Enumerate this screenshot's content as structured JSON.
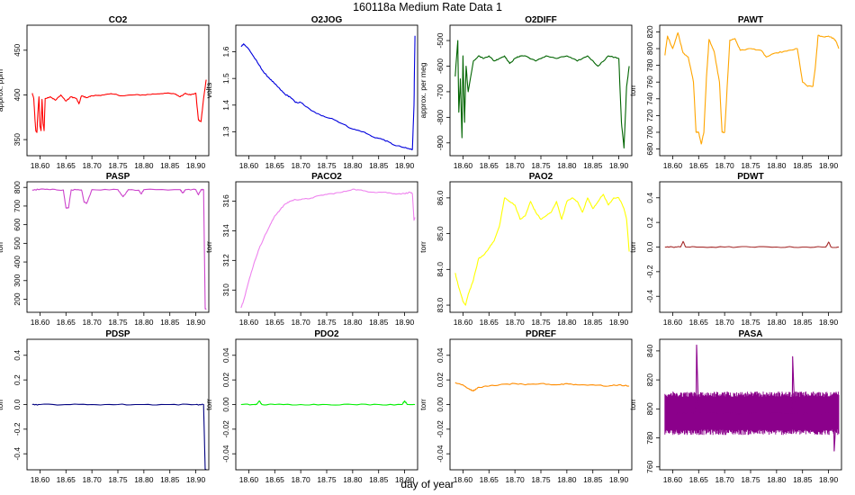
{
  "page": {
    "title": "160118a   Medium Rate Data 1",
    "xlabel": "day of year"
  },
  "chart_data": [
    {
      "type": "line",
      "title": "CO2",
      "ylabel": "approx. ppm",
      "color": "#ff0000",
      "xlim": [
        18.575,
        18.925
      ],
      "ylim": [
        332,
        478
      ],
      "xticks": [
        "18.60",
        "18.65",
        "18.70",
        "18.75",
        "18.80",
        "18.85",
        "18.90"
      ],
      "yticks": [
        "350",
        "400",
        "450"
      ],
      "x": [
        18.585,
        18.588,
        18.59,
        18.592,
        18.594,
        18.596,
        18.598,
        18.6,
        18.602,
        18.604,
        18.606,
        18.608,
        18.61,
        18.62,
        18.63,
        18.64,
        18.65,
        18.66,
        18.67,
        18.675,
        18.68,
        18.69,
        18.7,
        18.72,
        18.74,
        18.76,
        18.78,
        18.8,
        18.82,
        18.84,
        18.86,
        18.87,
        18.88,
        18.89,
        18.9,
        18.905,
        18.91,
        18.915,
        18.92
      ],
      "y": [
        402,
        396,
        376,
        360,
        358,
        380,
        398,
        365,
        360,
        395,
        368,
        360,
        396,
        398,
        394,
        400,
        393,
        398,
        396,
        390,
        399,
        397,
        399,
        400,
        401,
        399,
        400,
        400,
        401,
        402,
        401,
        398,
        402,
        400,
        402,
        372,
        370,
        396,
        417
      ]
    },
    {
      "type": "line",
      "title": "O2JOG",
      "ylabel": "volts",
      "color": "#0000dd",
      "xlim": [
        18.575,
        18.925
      ],
      "ylim": [
        1.21,
        1.7
      ],
      "xticks": [
        "18.60",
        "18.65",
        "18.70",
        "18.75",
        "18.80",
        "18.85",
        "18.90"
      ],
      "yticks": [
        "1.3",
        "1.4",
        "1.5",
        "1.6"
      ],
      "x": [
        18.585,
        18.59,
        18.6,
        18.61,
        18.62,
        18.63,
        18.64,
        18.65,
        18.66,
        18.67,
        18.68,
        18.69,
        18.7,
        18.72,
        18.74,
        18.76,
        18.78,
        18.8,
        18.82,
        18.84,
        18.86,
        18.88,
        18.9,
        18.91,
        18.915,
        18.918,
        18.92
      ],
      "y": [
        1.62,
        1.63,
        1.61,
        1.58,
        1.55,
        1.52,
        1.5,
        1.48,
        1.46,
        1.44,
        1.43,
        1.41,
        1.41,
        1.38,
        1.36,
        1.35,
        1.33,
        1.31,
        1.3,
        1.28,
        1.27,
        1.25,
        1.24,
        1.235,
        1.233,
        1.4,
        1.66
      ]
    },
    {
      "type": "line",
      "title": "O2DIFF",
      "ylabel": "approx. per meg",
      "color": "#006400",
      "xlim": [
        18.575,
        18.925
      ],
      "ylim": [
        -950,
        -440
      ],
      "xticks": [
        "18.60",
        "18.65",
        "18.70",
        "18.75",
        "18.80",
        "18.85",
        "18.90"
      ],
      "yticks": [
        "-900",
        "-800",
        "-700",
        "-600",
        "-500"
      ],
      "x": [
        18.585,
        18.59,
        18.592,
        18.595,
        18.598,
        18.6,
        18.603,
        18.606,
        18.61,
        18.62,
        18.63,
        18.64,
        18.65,
        18.66,
        18.67,
        18.68,
        18.69,
        18.7,
        18.71,
        18.72,
        18.74,
        18.76,
        18.78,
        18.8,
        18.82,
        18.84,
        18.86,
        18.88,
        18.9,
        18.905,
        18.91,
        18.915,
        18.92
      ],
      "y": [
        -640,
        -500,
        -780,
        -650,
        -880,
        -560,
        -820,
        -600,
        -700,
        -580,
        -560,
        -570,
        -560,
        -580,
        -570,
        -560,
        -590,
        -570,
        -560,
        -560,
        -580,
        -560,
        -570,
        -560,
        -580,
        -560,
        -600,
        -560,
        -570,
        -820,
        -920,
        -680,
        -600
      ]
    },
    {
      "type": "line",
      "title": "PAWT",
      "ylabel": "torr",
      "color": "#ffa500",
      "xlim": [
        18.575,
        18.925
      ],
      "ylim": [
        672,
        828
      ],
      "xticks": [
        "18.60",
        "18.65",
        "18.70",
        "18.75",
        "18.80",
        "18.85",
        "18.90"
      ],
      "yticks": [
        "680",
        "700",
        "720",
        "740",
        "760",
        "780",
        "800",
        "820"
      ],
      "x": [
        18.585,
        18.59,
        18.6,
        18.61,
        18.62,
        18.63,
        18.64,
        18.645,
        18.65,
        18.655,
        18.66,
        18.665,
        18.67,
        18.68,
        18.69,
        18.695,
        18.7,
        18.71,
        18.72,
        18.73,
        18.75,
        18.77,
        18.78,
        18.8,
        18.82,
        18.84,
        18.85,
        18.86,
        18.87,
        18.875,
        18.88,
        18.89,
        18.9,
        18.91,
        18.915,
        18.92
      ],
      "y": [
        792,
        815,
        800,
        819,
        795,
        790,
        760,
        700,
        700,
        686,
        700,
        765,
        811,
        796,
        760,
        700,
        700,
        810,
        812,
        798,
        800,
        798,
        790,
        795,
        797,
        800,
        760,
        755,
        755,
        780,
        816,
        814,
        815,
        812,
        808,
        800
      ]
    },
    {
      "type": "line",
      "title": "PASP",
      "ylabel": "torr",
      "color": "#cc44cc",
      "xlim": [
        18.575,
        18.925
      ],
      "ylim": [
        130,
        830
      ],
      "xticks": [
        "18.60",
        "18.65",
        "18.70",
        "18.75",
        "18.80",
        "18.85",
        "18.90"
      ],
      "yticks": [
        "200",
        "300",
        "400",
        "500",
        "600",
        "700",
        "800"
      ],
      "x": [
        18.585,
        18.6,
        18.62,
        18.645,
        18.65,
        18.655,
        18.66,
        18.68,
        18.685,
        18.69,
        18.7,
        18.75,
        18.76,
        18.77,
        18.79,
        18.795,
        18.8,
        18.87,
        18.875,
        18.88,
        18.9,
        18.905,
        18.91,
        18.915,
        18.918,
        18.92
      ],
      "y": [
        785,
        790,
        788,
        786,
        690,
        690,
        787,
        786,
        720,
        715,
        788,
        788,
        750,
        788,
        785,
        765,
        788,
        788,
        770,
        788,
        788,
        760,
        788,
        788,
        150,
        150
      ]
    },
    {
      "type": "line",
      "title": "PACO2",
      "ylabel": "torr",
      "color": "#ee82ee",
      "xlim": [
        18.575,
        18.925
      ],
      "ylim": [
        308.5,
        317.3
      ],
      "xticks": [
        "18.60",
        "18.65",
        "18.70",
        "18.75",
        "18.80",
        "18.85",
        "18.90"
      ],
      "yticks": [
        "310",
        "312",
        "314",
        "316"
      ],
      "x": [
        18.585,
        18.59,
        18.6,
        18.61,
        18.62,
        18.63,
        18.64,
        18.65,
        18.66,
        18.67,
        18.68,
        18.69,
        18.7,
        18.72,
        18.74,
        18.76,
        18.78,
        18.8,
        18.82,
        18.84,
        18.86,
        18.88,
        18.9,
        18.91,
        18.915,
        18.918,
        18.92
      ],
      "y": [
        308.8,
        309.3,
        310.6,
        311.8,
        312.8,
        313.6,
        314.3,
        315.0,
        315.4,
        315.8,
        316.0,
        316.1,
        316.1,
        316.2,
        316.4,
        316.5,
        316.6,
        316.8,
        316.7,
        316.6,
        316.6,
        316.5,
        316.5,
        316.6,
        316.5,
        314.7,
        314.9
      ]
    },
    {
      "type": "line",
      "title": "PAO2",
      "ylabel": "torr",
      "color": "#ffff00",
      "xlim": [
        18.575,
        18.925
      ],
      "ylim": [
        82.8,
        86.45
      ],
      "xticks": [
        "18.60",
        "18.65",
        "18.70",
        "18.75",
        "18.80",
        "18.85",
        "18.90"
      ],
      "yticks": [
        "83.0",
        "84.0",
        "85.0",
        "86.0"
      ],
      "x": [
        18.585,
        18.59,
        18.6,
        18.605,
        18.61,
        18.62,
        18.63,
        18.64,
        18.65,
        18.66,
        18.67,
        18.68,
        18.69,
        18.7,
        18.71,
        18.72,
        18.73,
        18.74,
        18.75,
        18.76,
        18.77,
        18.78,
        18.79,
        18.8,
        18.81,
        18.82,
        18.83,
        18.84,
        18.85,
        18.86,
        18.87,
        18.88,
        18.89,
        18.9,
        18.91,
        18.915,
        18.92
      ],
      "y": [
        83.9,
        83.6,
        83.1,
        83.0,
        83.3,
        83.7,
        84.3,
        84.4,
        84.6,
        84.8,
        85.2,
        86.0,
        85.9,
        85.8,
        85.4,
        85.5,
        85.9,
        85.6,
        85.4,
        85.5,
        85.6,
        85.9,
        85.4,
        85.9,
        86.0,
        85.9,
        85.6,
        86.0,
        85.7,
        85.9,
        86.1,
        85.8,
        86.0,
        86.0,
        85.7,
        85.4,
        84.5
      ]
    },
    {
      "type": "line",
      "title": "PDWT",
      "ylabel": "torr",
      "color": "#a52a2a",
      "xlim": [
        18.575,
        18.925
      ],
      "ylim": [
        -0.53,
        0.53
      ],
      "xticks": [
        "18.60",
        "18.65",
        "18.70",
        "18.75",
        "18.80",
        "18.85",
        "18.90"
      ],
      "yticks": [
        "-0.4",
        "-0.2",
        "0.0",
        "0.2",
        "0.4"
      ],
      "x": [
        18.585,
        18.6,
        18.615,
        18.62,
        18.625,
        18.65,
        18.7,
        18.75,
        18.8,
        18.85,
        18.895,
        18.9,
        18.905,
        18.92
      ],
      "y": [
        0.0,
        0.0,
        0.0,
        0.045,
        0.0,
        0.0,
        0.0,
        0.0,
        0.0,
        0.0,
        0.0,
        0.04,
        0.0,
        0.0
      ]
    },
    {
      "type": "line",
      "title": "PDSP",
      "ylabel": "torr",
      "color": "#000080",
      "xlim": [
        18.575,
        18.925
      ],
      "ylim": [
        -0.53,
        0.53
      ],
      "xticks": [
        "18.60",
        "18.65",
        "18.70",
        "18.75",
        "18.80",
        "18.85",
        "18.90"
      ],
      "yticks": [
        "-0.4",
        "-0.2",
        "0.0",
        "0.2",
        "0.4"
      ],
      "x": [
        18.585,
        18.6,
        18.65,
        18.7,
        18.75,
        18.8,
        18.85,
        18.9,
        18.915,
        18.918,
        18.92
      ],
      "y": [
        0.0,
        0.0,
        0.0,
        0.0,
        0.0,
        0.0,
        0.0,
        0.0,
        0.0,
        -0.53,
        -0.53
      ]
    },
    {
      "type": "line",
      "title": "PDO2",
      "ylabel": "torr",
      "color": "#00ee00",
      "xlim": [
        18.575,
        18.925
      ],
      "ylim": [
        -0.053,
        0.053
      ],
      "xticks": [
        "18.60",
        "18.65",
        "18.70",
        "18.75",
        "18.80",
        "18.85",
        "18.90"
      ],
      "yticks": [
        "-0.04",
        "-0.02",
        "0.00",
        "0.02",
        "0.04"
      ],
      "x": [
        18.585,
        18.61,
        18.615,
        18.62,
        18.625,
        18.65,
        18.7,
        18.75,
        18.8,
        18.85,
        18.895,
        18.9,
        18.905,
        18.92
      ],
      "y": [
        0.0,
        0.0,
        0.0,
        0.003,
        0.0,
        0.0,
        0.0,
        0.0,
        0.0,
        0.0,
        0.0,
        0.003,
        0.0,
        0.0
      ]
    },
    {
      "type": "line",
      "title": "PDREF",
      "ylabel": "torr",
      "color": "#ff8c00",
      "xlim": [
        18.575,
        18.925
      ],
      "ylim": [
        -0.053,
        0.053
      ],
      "xticks": [
        "18.60",
        "18.65",
        "18.70",
        "18.75",
        "18.80",
        "18.85",
        "18.90"
      ],
      "yticks": [
        "-0.04",
        "-0.02",
        "0.00",
        "0.02",
        "0.04"
      ],
      "x": [
        18.585,
        18.6,
        18.61,
        18.62,
        18.63,
        18.65,
        18.67,
        18.7,
        18.72,
        18.75,
        18.78,
        18.8,
        18.82,
        18.85,
        18.88,
        18.9,
        18.92
      ],
      "y": [
        0.018,
        0.016,
        0.013,
        0.011,
        0.014,
        0.015,
        0.016,
        0.017,
        0.016,
        0.017,
        0.016,
        0.017,
        0.016,
        0.016,
        0.015,
        0.016,
        0.015
      ]
    },
    {
      "type": "line",
      "title": "PASA",
      "ylabel": "torr",
      "color": "#8b008b",
      "xlim": [
        18.575,
        18.925
      ],
      "ylim": [
        758,
        848
      ],
      "xticks": [
        "18.60",
        "18.65",
        "18.70",
        "18.75",
        "18.80",
        "18.85",
        "18.90"
      ],
      "yticks": [
        "760",
        "780",
        "800",
        "820",
        "840"
      ],
      "x": [
        18.585,
        18.6,
        18.62,
        18.645,
        18.646,
        18.65,
        18.68,
        18.7,
        18.75,
        18.8,
        18.83,
        18.831,
        18.835,
        18.86,
        18.9,
        18.91,
        18.911,
        18.915,
        18.92
      ],
      "y": [
        797,
        797,
        797,
        797,
        844,
        797,
        797,
        797,
        797,
        797,
        797,
        836,
        797,
        797,
        797,
        797,
        771,
        797,
        797
      ],
      "band": [
        782,
        812
      ]
    }
  ]
}
